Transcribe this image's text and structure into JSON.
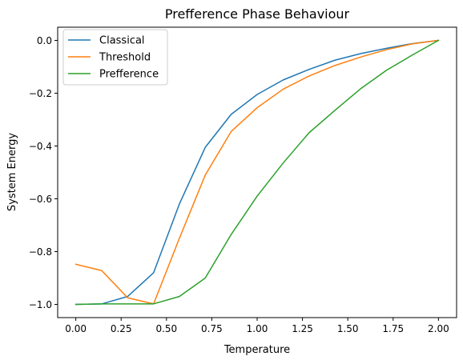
{
  "chart_data": {
    "type": "line",
    "title": "Prefference Phase Behaviour",
    "xlabel": "Temperature",
    "ylabel": "System Energy",
    "xlim": [
      -0.1,
      2.1
    ],
    "ylim": [
      -1.05,
      0.05
    ],
    "xticks": [
      0.0,
      0.25,
      0.5,
      0.75,
      1.0,
      1.25,
      1.5,
      1.75,
      2.0
    ],
    "xtick_labels": [
      "0.00",
      "0.25",
      "0.50",
      "0.75",
      "1.00",
      "1.25",
      "1.50",
      "1.75",
      "2.00"
    ],
    "yticks": [
      -1.0,
      -0.8,
      -0.6,
      -0.4,
      -0.2,
      0.0
    ],
    "ytick_labels": [
      "−1.0",
      "−0.8",
      "−0.6",
      "−0.4",
      "−0.2",
      "0.0"
    ],
    "grid": false,
    "legend_position": "top-left",
    "x": [
      0.0,
      0.143,
      0.286,
      0.429,
      0.571,
      0.714,
      0.857,
      1.0,
      1.143,
      1.286,
      1.429,
      1.571,
      1.714,
      1.857,
      2.0
    ],
    "series": [
      {
        "name": "Classical",
        "color": "#1f77b4",
        "values": [
          -1.0,
          -0.998,
          -0.97,
          -0.88,
          -0.62,
          -0.405,
          -0.28,
          -0.205,
          -0.15,
          -0.11,
          -0.075,
          -0.05,
          -0.03,
          -0.012,
          0.0
        ]
      },
      {
        "name": "Threshold",
        "color": "#ff7f0e",
        "values": [
          -0.848,
          -0.872,
          -0.975,
          -0.998,
          -0.75,
          -0.51,
          -0.345,
          -0.255,
          -0.185,
          -0.135,
          -0.095,
          -0.063,
          -0.035,
          -0.013,
          0.0
        ]
      },
      {
        "name": "Prefference",
        "color": "#2ca02c",
        "values": [
          -1.0,
          -0.998,
          -0.998,
          -0.998,
          -0.97,
          -0.9,
          -0.735,
          -0.59,
          -0.465,
          -0.35,
          -0.265,
          -0.183,
          -0.113,
          -0.055,
          0.0
        ]
      }
    ]
  }
}
